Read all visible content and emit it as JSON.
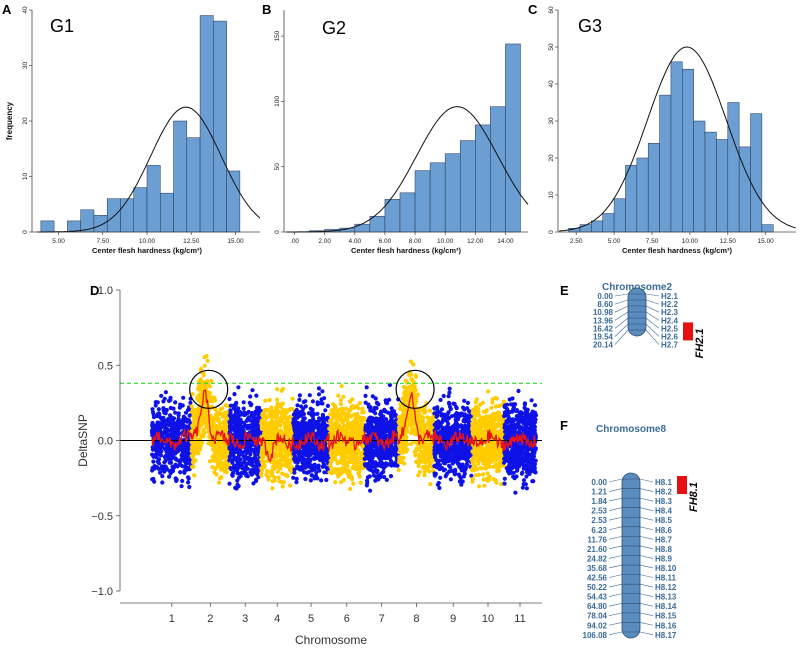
{
  "colors": {
    "bar": "#6b9fd4",
    "bar_stroke": "#1f3550",
    "blue_points": "#0f12e6",
    "yellow_points": "#ffcc00",
    "red_line": "#e8141a",
    "threshold": "#22e022",
    "chrom_fill": "#5b8cc0",
    "chrom_text": "#3a6b9a",
    "qtl": "#e61010"
  },
  "panel_labels": {
    "A": "A",
    "B": "B",
    "C": "C",
    "D": "D",
    "E": "E",
    "F": "F"
  },
  "chart_data": [
    {
      "id": "A",
      "type": "bar",
      "title": "G1",
      "xlabel": "Center flesh hardness (kg/cm³)",
      "ylabel": "frequency",
      "xlim": [
        3.5,
        16.5
      ],
      "ylim": [
        0,
        40
      ],
      "bin_width": 0.75,
      "bin_starts": [
        4.0,
        4.75,
        5.5,
        6.25,
        7.0,
        7.75,
        8.5,
        9.25,
        10.0,
        10.75,
        11.5,
        12.25,
        13.0,
        13.75,
        14.5
      ],
      "values": [
        2,
        0,
        2,
        4,
        3,
        6,
        6,
        8,
        12,
        7,
        20,
        17,
        39,
        38,
        11
      ],
      "normal_curve": {
        "mean": 12.2,
        "sd": 2.0,
        "peak": 22.5
      },
      "xticks": [
        5,
        7.5,
        10,
        12.5,
        15
      ],
      "xtick_labels": [
        "5.00",
        "7.50",
        "10.00",
        "12.50",
        "15.00"
      ],
      "yticks": [
        0,
        10,
        20,
        30,
        40
      ],
      "ytick_labels": [
        "0",
        "10",
        "20",
        "30",
        "40"
      ]
    },
    {
      "id": "B",
      "type": "bar",
      "title": "G2",
      "xlabel": "Center flesh hardness (kg/cm³)",
      "ylabel": "",
      "xlim": [
        -0.7,
        15.5
      ],
      "ylim": [
        0,
        170
      ],
      "bin_width": 1.0,
      "bin_starts": [
        1.0,
        2.0,
        3.0,
        4.0,
        5.0,
        6.0,
        7.0,
        8.0,
        9.0,
        10.0,
        11.0,
        12.0,
        13.0,
        14.0
      ],
      "values": [
        1,
        2,
        3,
        6,
        12,
        25,
        30,
        47,
        53,
        60,
        70,
        82,
        96,
        144
      ],
      "normal_curve": {
        "mean": 10.8,
        "sd": 2.7,
        "peak": 96
      },
      "xticks": [
        0,
        2,
        4,
        6,
        8,
        10,
        12,
        14
      ],
      "xtick_labels": [
        ".00",
        "2.00",
        "4.00",
        "6.00",
        "8.00",
        "10.00",
        "12.00",
        "14.00"
      ],
      "yticks": [
        0,
        50,
        100,
        150
      ],
      "ytick_labels": [
        "0",
        "50",
        "100",
        "150"
      ]
    },
    {
      "id": "C",
      "type": "bar",
      "title": "G3",
      "xlabel": "Center flesh hardness (kg/cm³)",
      "ylabel": "",
      "xlim": [
        1.3,
        17.0
      ],
      "ylim": [
        0,
        60
      ],
      "bin_width": 0.75,
      "bin_starts": [
        2.0,
        2.75,
        3.5,
        4.25,
        5.0,
        5.75,
        6.5,
        7.25,
        8.0,
        8.75,
        9.5,
        10.25,
        11.0,
        11.75,
        12.5,
        13.25,
        14.0,
        14.75
      ],
      "values": [
        1,
        2,
        3,
        5,
        9,
        18,
        20,
        24,
        37,
        46,
        44,
        30,
        27,
        25,
        35,
        23,
        32,
        2
      ],
      "normal_curve": {
        "mean": 9.8,
        "sd": 2.6,
        "peak": 50
      },
      "xticks": [
        2.5,
        5,
        7.5,
        10,
        12.5,
        15
      ],
      "xtick_labels": [
        "2.50",
        "5.00",
        "7.50",
        "10.00",
        "12.50",
        "15.00"
      ],
      "yticks": [
        0,
        10,
        20,
        30,
        40,
        50,
        60
      ],
      "ytick_labels": [
        "0",
        "10",
        "20",
        "30",
        "40",
        "50",
        "60"
      ]
    },
    {
      "id": "D",
      "type": "scatter",
      "xlabel": "Chromosome",
      "ylabel": "DeltaSNP",
      "ylim": [
        -1.0,
        1.0
      ],
      "yticks": [
        -1.0,
        -0.5,
        0.0,
        0.5,
        1.0
      ],
      "ytick_labels": [
        "−1.0",
        "−0.5",
        "0.0",
        "0.5",
        "1.0"
      ],
      "chromosomes": [
        "1",
        "2",
        "3",
        "4",
        "5",
        "6",
        "7",
        "8",
        "9",
        "10",
        "11"
      ],
      "threshold": 0.38,
      "highlight_chromosomes": [
        "2",
        "8"
      ],
      "series": [
        {
          "name": "odd chromosomes",
          "color": "blue"
        },
        {
          "name": "even chromosomes",
          "color": "yellow"
        },
        {
          "name": "sliding-window DeltaSNP",
          "color": "red"
        }
      ]
    }
  ],
  "chromosome_maps": [
    {
      "id": "E",
      "title": "Chromosome2",
      "qtl": "FH2.1",
      "qtl_marker_index": 4,
      "positions": [
        "0.00",
        "8.60",
        "10.98",
        "13.96",
        "16.42",
        "19.54",
        "20.14"
      ],
      "markers": [
        "H2.1",
        "H2.2",
        "H2.3",
        "H2.4",
        "H2.5",
        "H2.6",
        "H2.7"
      ]
    },
    {
      "id": "F",
      "title": "Chromosome8",
      "qtl": "FH8.1",
      "qtl_marker_index": 0,
      "positions": [
        "0.00",
        "1.21",
        "1.84",
        "2.53",
        "2.53",
        "6.23",
        "11.76",
        "21.60",
        "24.82",
        "35.68",
        "42.56",
        "50.22",
        "54.43",
        "64.80",
        "78.04",
        "94.02",
        "106.08"
      ],
      "markers": [
        "H8.1",
        "H8.2",
        "H8.3",
        "H8.4",
        "H8.5",
        "H8.6",
        "H8.7",
        "H8.8",
        "H8.9",
        "H8.10",
        "H8.11",
        "H8.12",
        "H8.13",
        "H8.14",
        "H8.15",
        "H8.16",
        "H8.17"
      ]
    }
  ]
}
